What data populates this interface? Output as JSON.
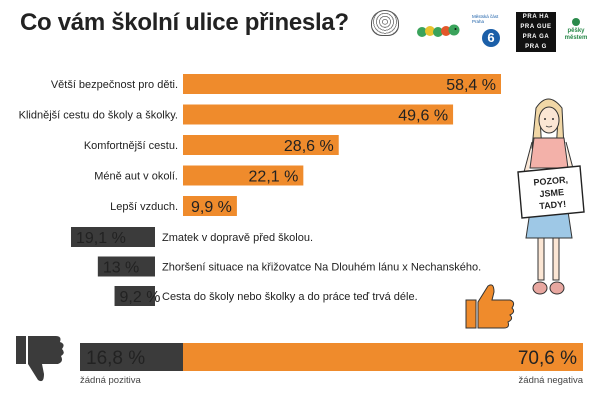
{
  "title": "Co vám školní ulice přinesla?",
  "logos": {
    "praha6_text": "Městská část Praha",
    "praha6_number": "6",
    "prague_lines": [
      "PRA HA",
      "PRA GUE",
      "PRA GA",
      "PRA G"
    ],
    "pesky_text": "pěšky městem"
  },
  "sign": {
    "lines": [
      "POZOR,",
      "JSME",
      "TADY!"
    ]
  },
  "colors": {
    "positive": "#ef8b2c",
    "negative": "#3b3b3b",
    "background": "#ffffff"
  },
  "icons": [
    "thumbs-up-icon",
    "thumbs-down-icon"
  ],
  "chart_data": {
    "type": "bar",
    "unit": "%",
    "positive": {
      "categories": [
        "Větší bezpečnost pro děti.",
        "Klidnější cestu do školy a školky.",
        "Komfortnější cestu.",
        "Méně aut v okolí.",
        "Lepší vzduch."
      ],
      "values": [
        58.4,
        49.6,
        28.6,
        22.1,
        9.9
      ],
      "labels": [
        "58,4 %",
        "49,6 %",
        "28,6 %",
        "22,1 %",
        "9,9 %"
      ]
    },
    "negative": {
      "categories": [
        "Zmatek v dopravě před školou.",
        "Zhoršení situace na křižovatce Na Dlouhém lánu x Nechanského.",
        "Cesta do školy nebo školky a do práce teď trvá déle."
      ],
      "values": [
        19.1,
        13,
        9.2
      ],
      "labels": [
        "19,1 %",
        "13 %",
        "9,2 %"
      ]
    },
    "summary": {
      "no_positive_value": 16.8,
      "no_positive_label": "16,8 %",
      "no_positive_caption": "žádná pozitiva",
      "no_negative_value": 70.6,
      "no_negative_label": "70,6 %",
      "no_negative_caption": "žádná negativa"
    }
  }
}
